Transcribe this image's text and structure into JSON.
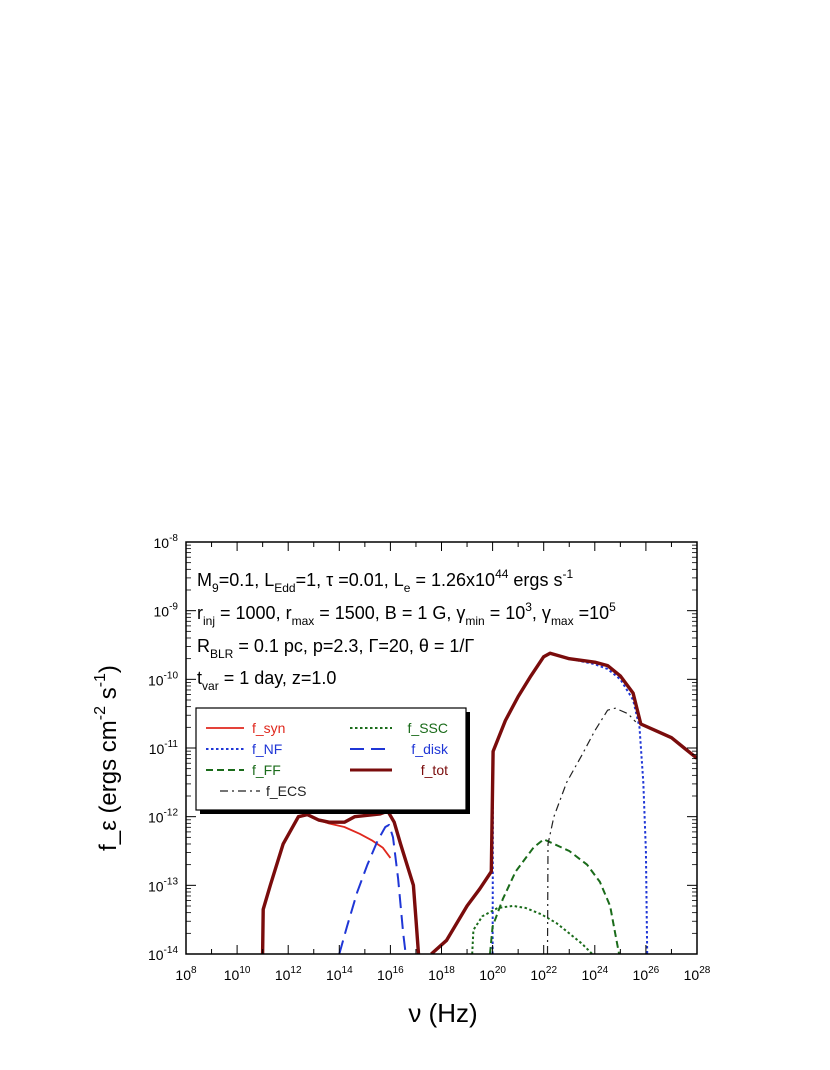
{
  "chart_data": {
    "type": "line",
    "xlabel": "ν (Hz)",
    "ylabel": "f_ε (ergs cm^-2 s^-1)",
    "xscale": "log",
    "yscale": "log",
    "xlim": [
      100000000.0,
      1e+28
    ],
    "ylim": [
      1e-14,
      1e-08
    ],
    "grid": false,
    "legend_position": "center-left",
    "x_ticks": [
      {
        "base": "10",
        "exp": "8"
      },
      {
        "base": "10",
        "exp": "10"
      },
      {
        "base": "10",
        "exp": "12"
      },
      {
        "base": "10",
        "exp": "14"
      },
      {
        "base": "10",
        "exp": "16"
      },
      {
        "base": "10",
        "exp": "18"
      },
      {
        "base": "10",
        "exp": "20"
      },
      {
        "base": "10",
        "exp": "22"
      },
      {
        "base": "10",
        "exp": "24"
      },
      {
        "base": "10",
        "exp": "26"
      },
      {
        "base": "10",
        "exp": "28"
      }
    ],
    "y_ticks": [
      {
        "base": "10",
        "exp": "-14"
      },
      {
        "base": "10",
        "exp": "-13"
      },
      {
        "base": "10",
        "exp": "-12"
      },
      {
        "base": "10",
        "exp": "-11"
      },
      {
        "base": "10",
        "exp": "-10"
      },
      {
        "base": "10",
        "exp": "-9"
      },
      {
        "base": "10",
        "exp": "-8"
      }
    ],
    "annotations": [
      "M_9=0.1, L_Edd=1, τ =0.01, L_e = 1.26x10^44 ergs s^-1",
      "r_inj = 1000, r_max = 1500, B = 1 G, γ_min = 10^3, γ_max =10^5",
      "R_BLR = 0.1 pc, p=2.3, Γ=20, θ = 1/Γ",
      "t_var = 1 day, z=1.0"
    ],
    "series": [
      {
        "name": "f_syn",
        "color": "#e0281e",
        "dash": "solid",
        "width": 1.8,
        "points": [
          [
            11.0,
            -14.0
          ],
          [
            11.02,
            -13.35
          ],
          [
            11.3,
            -13.0
          ],
          [
            11.8,
            -12.4
          ],
          [
            12.4,
            -12.0
          ],
          [
            12.75,
            -11.97
          ],
          [
            13.2,
            -12.05
          ],
          [
            13.6,
            -12.1
          ],
          [
            14.2,
            -12.15
          ],
          [
            14.8,
            -12.25
          ],
          [
            15.3,
            -12.35
          ],
          [
            15.7,
            -12.45
          ],
          [
            16.0,
            -12.6
          ]
        ]
      },
      {
        "name": "f_NF",
        "color": "#1f36d6",
        "dash": "dotted",
        "width": 2,
        "points": [
          [
            20.0,
            -14.0
          ],
          [
            20.02,
            -11.05
          ],
          [
            20.5,
            -10.6
          ],
          [
            21.0,
            -10.25
          ],
          [
            21.5,
            -9.95
          ],
          [
            22.0,
            -9.67
          ],
          [
            22.25,
            -9.62
          ],
          [
            23.0,
            -9.7
          ],
          [
            24.0,
            -9.78
          ],
          [
            24.5,
            -9.85
          ],
          [
            25.0,
            -10.0
          ],
          [
            25.5,
            -10.3
          ],
          [
            25.75,
            -10.7
          ],
          [
            25.9,
            -11.5
          ],
          [
            26.0,
            -12.5
          ],
          [
            26.05,
            -14.0
          ]
        ]
      },
      {
        "name": "f_FF",
        "color": "#1a6b1a",
        "dash": "dashed",
        "width": 2,
        "points": [
          [
            19.9,
            -14.0
          ],
          [
            20.0,
            -13.6
          ],
          [
            20.4,
            -13.2
          ],
          [
            20.9,
            -12.8
          ],
          [
            21.6,
            -12.45
          ],
          [
            22.0,
            -12.33
          ],
          [
            22.3,
            -12.38
          ],
          [
            23.0,
            -12.5
          ],
          [
            23.7,
            -12.7
          ],
          [
            24.2,
            -12.95
          ],
          [
            24.6,
            -13.3
          ],
          [
            24.8,
            -13.7
          ],
          [
            24.95,
            -14.0
          ]
        ]
      },
      {
        "name": "f_SSC",
        "color": "#1a6b1a",
        "dash": "dotted",
        "width": 2,
        "points": [
          [
            19.2,
            -14.0
          ],
          [
            19.25,
            -13.65
          ],
          [
            19.6,
            -13.45
          ],
          [
            20.2,
            -13.33
          ],
          [
            20.8,
            -13.3
          ],
          [
            21.3,
            -13.33
          ],
          [
            21.9,
            -13.42
          ],
          [
            22.5,
            -13.55
          ],
          [
            23.0,
            -13.7
          ],
          [
            23.5,
            -13.85
          ],
          [
            23.9,
            -14.0
          ]
        ]
      },
      {
        "name": "f_disk",
        "color": "#1f36d6",
        "dash": "longdash",
        "width": 2,
        "points": [
          [
            14.0,
            -14.0
          ],
          [
            14.3,
            -13.6
          ],
          [
            14.7,
            -13.1
          ],
          [
            15.1,
            -12.7
          ],
          [
            15.5,
            -12.35
          ],
          [
            15.8,
            -12.15
          ],
          [
            15.95,
            -12.12
          ],
          [
            16.1,
            -12.3
          ],
          [
            16.3,
            -12.9
          ],
          [
            16.5,
            -13.7
          ],
          [
            16.6,
            -14.0
          ]
        ]
      },
      {
        "name": "f_tot",
        "color": "#7a0c0c",
        "dash": "solid",
        "width": 3.4,
        "points": [
          [
            11.0,
            -14.0
          ],
          [
            11.02,
            -13.35
          ],
          [
            11.3,
            -13.0
          ],
          [
            11.8,
            -12.4
          ],
          [
            12.4,
            -12.0
          ],
          [
            12.75,
            -11.97
          ],
          [
            13.2,
            -12.05
          ],
          [
            13.6,
            -12.08
          ],
          [
            14.2,
            -12.08
          ],
          [
            14.6,
            -12.0
          ],
          [
            15.1,
            -11.98
          ],
          [
            15.6,
            -11.96
          ],
          [
            15.9,
            -11.92
          ],
          [
            16.15,
            -12.08
          ],
          [
            16.4,
            -12.4
          ],
          [
            16.9,
            -13.0
          ],
          [
            17.0,
            -13.5
          ],
          [
            17.1,
            -14.0
          ]
        ]
      },
      {
        "name": "",
        "color": "#7a0c0c",
        "dash": "solid",
        "width": 3.4,
        "points": [
          [
            17.6,
            -14.0
          ],
          [
            18.2,
            -13.8
          ],
          [
            19.0,
            -13.3
          ],
          [
            19.5,
            -13.05
          ],
          [
            19.95,
            -12.8
          ],
          [
            20.02,
            -11.05
          ],
          [
            20.5,
            -10.6
          ],
          [
            21.0,
            -10.25
          ],
          [
            21.5,
            -9.95
          ],
          [
            22.0,
            -9.67
          ],
          [
            22.25,
            -9.62
          ],
          [
            23.0,
            -9.7
          ],
          [
            24.0,
            -9.75
          ],
          [
            24.5,
            -9.8
          ],
          [
            25.0,
            -9.95
          ],
          [
            25.5,
            -10.2
          ],
          [
            25.8,
            -10.65
          ],
          [
            26.4,
            -10.75
          ],
          [
            27.0,
            -10.85
          ],
          [
            27.5,
            -11.0
          ],
          [
            28.0,
            -11.15
          ]
        ]
      },
      {
        "name": "f_ECS",
        "color": "#222222",
        "dash": "dashdot",
        "width": 1.2,
        "points": [
          [
            22.15,
            -14.0
          ],
          [
            22.17,
            -12.4
          ],
          [
            22.4,
            -12.0
          ],
          [
            22.9,
            -11.5
          ],
          [
            23.5,
            -11.1
          ],
          [
            24.0,
            -10.75
          ],
          [
            24.5,
            -10.45
          ],
          [
            24.8,
            -10.42
          ],
          [
            25.3,
            -10.5
          ],
          [
            25.6,
            -10.62
          ]
        ]
      }
    ]
  }
}
